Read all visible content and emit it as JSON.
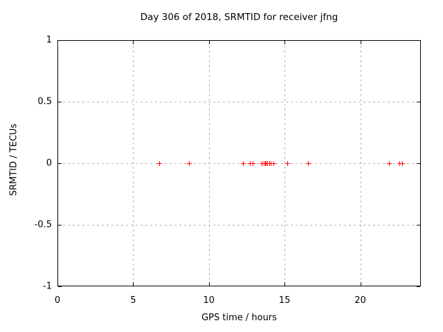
{
  "window": {
    "background": "#ffffff"
  },
  "chart_data": {
    "type": "scatter",
    "title": "Day 306 of 2018, SRMTID for receiver jfng",
    "xlabel": "GPS time / hours",
    "ylabel": "SRMTID / TECUs",
    "xlim": [
      0,
      24
    ],
    "ylim": [
      -1,
      1
    ],
    "xticks": [
      0,
      5,
      10,
      15,
      20
    ],
    "xtick_labels": [
      "0",
      "5",
      "10",
      "15",
      "20"
    ],
    "yticks": [
      1,
      0.5,
      0,
      -0.5,
      -1
    ],
    "ytick_labels": [
      "1",
      "0.5",
      "0",
      "-0.5",
      "-1"
    ],
    "grid": true,
    "legend": "none",
    "marker": "plus",
    "marker_size": 7,
    "colors": {
      "marker": "#ff0000",
      "grid": "#b0b0b0",
      "axis": "#000000",
      "text": "#000000"
    },
    "series": [
      {
        "name": "SRMTID",
        "x": [
          6.72,
          8.67,
          12.24,
          12.69,
          12.89,
          13.5,
          13.62,
          13.7,
          13.78,
          13.86,
          13.99,
          14.1,
          14.24,
          15.16,
          16.55,
          21.91,
          22.57,
          22.75
        ],
        "y": [
          0,
          0,
          0,
          0,
          0,
          0,
          0,
          0,
          0,
          0,
          0,
          0,
          0,
          0,
          0,
          0,
          0,
          0
        ]
      }
    ]
  }
}
